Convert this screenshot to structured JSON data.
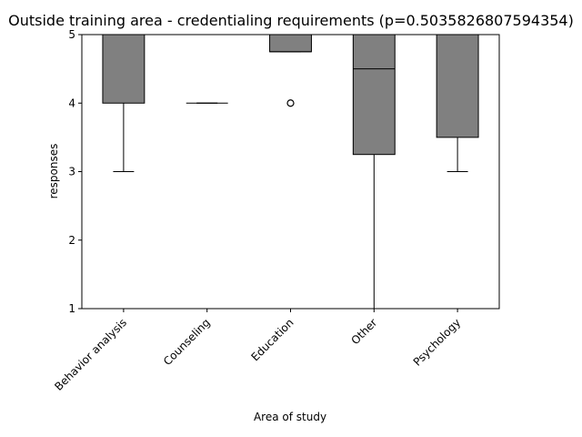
{
  "chart_data": {
    "type": "box",
    "title": "Outside training area - credentialing requirements (p=0.5035826807594354)",
    "xlabel": "Area of study",
    "ylabel": "responses",
    "ylim": [
      1,
      5
    ],
    "yticks": [
      1,
      2,
      3,
      4,
      5
    ],
    "grid": false,
    "box_color": "#808080",
    "categories": [
      "Behavior analysis",
      "Counseling",
      "Education",
      "Other",
      "Psychology"
    ],
    "boxes": [
      {
        "category": "Behavior analysis",
        "whisker_low": 3,
        "q1": 4,
        "median": 5,
        "q3": 5,
        "whisker_high": 5,
        "outliers": []
      },
      {
        "category": "Counseling",
        "whisker_low": 4,
        "q1": 4,
        "median": 4,
        "q3": 4,
        "whisker_high": 4,
        "outliers": []
      },
      {
        "category": "Education",
        "whisker_low": 4.75,
        "q1": 4.75,
        "median": 4.75,
        "q3": 5,
        "whisker_high": 5,
        "outliers": [
          4
        ]
      },
      {
        "category": "Other",
        "whisker_low": 1,
        "q1": 3.25,
        "median": 4.5,
        "q3": 5,
        "whisker_high": 5,
        "outliers": []
      },
      {
        "category": "Psychology",
        "whisker_low": 3,
        "q1": 3.5,
        "median": 5,
        "q3": 5,
        "whisker_high": 5,
        "outliers": []
      }
    ]
  }
}
